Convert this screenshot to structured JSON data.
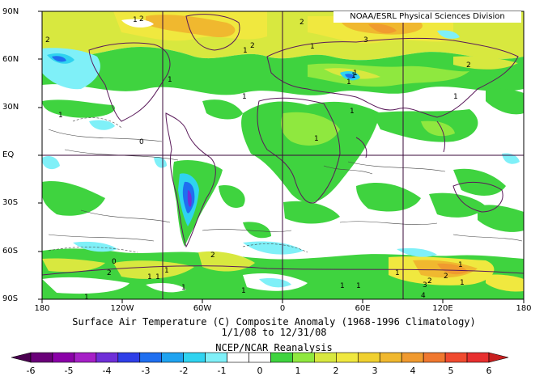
{
  "credit": "NOAA/ESRL Physical Sciences Division",
  "title": {
    "line1": "Surface Air Temperature (C) Composite Anomaly (1968-1996 Climatology)",
    "line2": "1/1/08  to 12/31/08",
    "line3": "NCEP/NCAR Reanalysis"
  },
  "axes": {
    "y_labels": [
      "90N",
      "60N",
      "30N",
      "EQ",
      "30S",
      "60S",
      "90S"
    ],
    "x_labels": [
      "180",
      "120W",
      "60W",
      "0",
      "60E",
      "120E",
      "180"
    ]
  },
  "colorbar": {
    "tick_labels": [
      "-6",
      "-5",
      "-4",
      "-3",
      "-2",
      "-1",
      "0",
      "1",
      "2",
      "3",
      "4",
      "5",
      "6"
    ],
    "colors": [
      "#4a0050",
      "#6a0079",
      "#8b00a8",
      "#a61fc7",
      "#6f2fd8",
      "#2f3fe8",
      "#1f6ff0",
      "#1fa3f0",
      "#2fd3f0",
      "#7ff0f8",
      "#ffffff",
      "#ffffff",
      "#3fd33f",
      "#8fe83f",
      "#d8e83f",
      "#f0e83f",
      "#f0d02f",
      "#f0b82f",
      "#f09a2f",
      "#f0782f",
      "#f04a2f",
      "#e82f2f",
      "#c81f1f"
    ]
  },
  "contour_labels": [
    "2",
    "1",
    "2",
    "1",
    "2",
    "1",
    "2",
    "3",
    "1",
    "1",
    "2",
    "1",
    "1",
    "1",
    "1",
    "0",
    "1",
    "2",
    "1",
    "1",
    "1",
    "1",
    "1",
    "2",
    "2",
    "1",
    "1",
    "1",
    "1",
    "1",
    "1",
    "1",
    "2",
    "3",
    "4",
    "1",
    "0"
  ]
}
